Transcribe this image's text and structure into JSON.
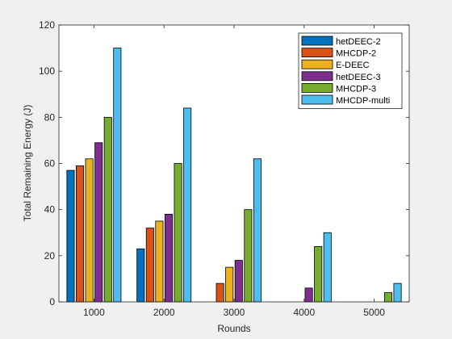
{
  "chart_data": {
    "type": "bar",
    "title": "",
    "xlabel": "Rounds",
    "ylabel": "Total Remaining Energy (J)",
    "categories": [
      "1000",
      "2000",
      "3000",
      "4000",
      "5000"
    ],
    "ylim": [
      0,
      120
    ],
    "yticks": [
      "0",
      "20",
      "40",
      "60",
      "80",
      "100",
      "120"
    ],
    "grid": false,
    "legend_position": "top-right",
    "series": [
      {
        "name": "hetDEEC-2",
        "color": "#0072BD",
        "values": [
          57,
          23,
          0,
          0,
          0
        ]
      },
      {
        "name": "MHCDP-2",
        "color": "#D95319",
        "values": [
          59,
          32,
          8,
          0,
          0
        ]
      },
      {
        "name": "E-DEEC",
        "color": "#EDB120",
        "values": [
          62,
          35,
          15,
          0,
          0
        ]
      },
      {
        "name": "hetDEEC-3",
        "color": "#7E2F8E",
        "values": [
          69,
          38,
          18,
          6,
          0
        ]
      },
      {
        "name": "MHCDP-3",
        "color": "#77AC30",
        "values": [
          80,
          60,
          40,
          24,
          4
        ]
      },
      {
        "name": "MHCDP-multi",
        "color": "#4DBEEE",
        "values": [
          110,
          84,
          62,
          30,
          8
        ]
      }
    ]
  }
}
